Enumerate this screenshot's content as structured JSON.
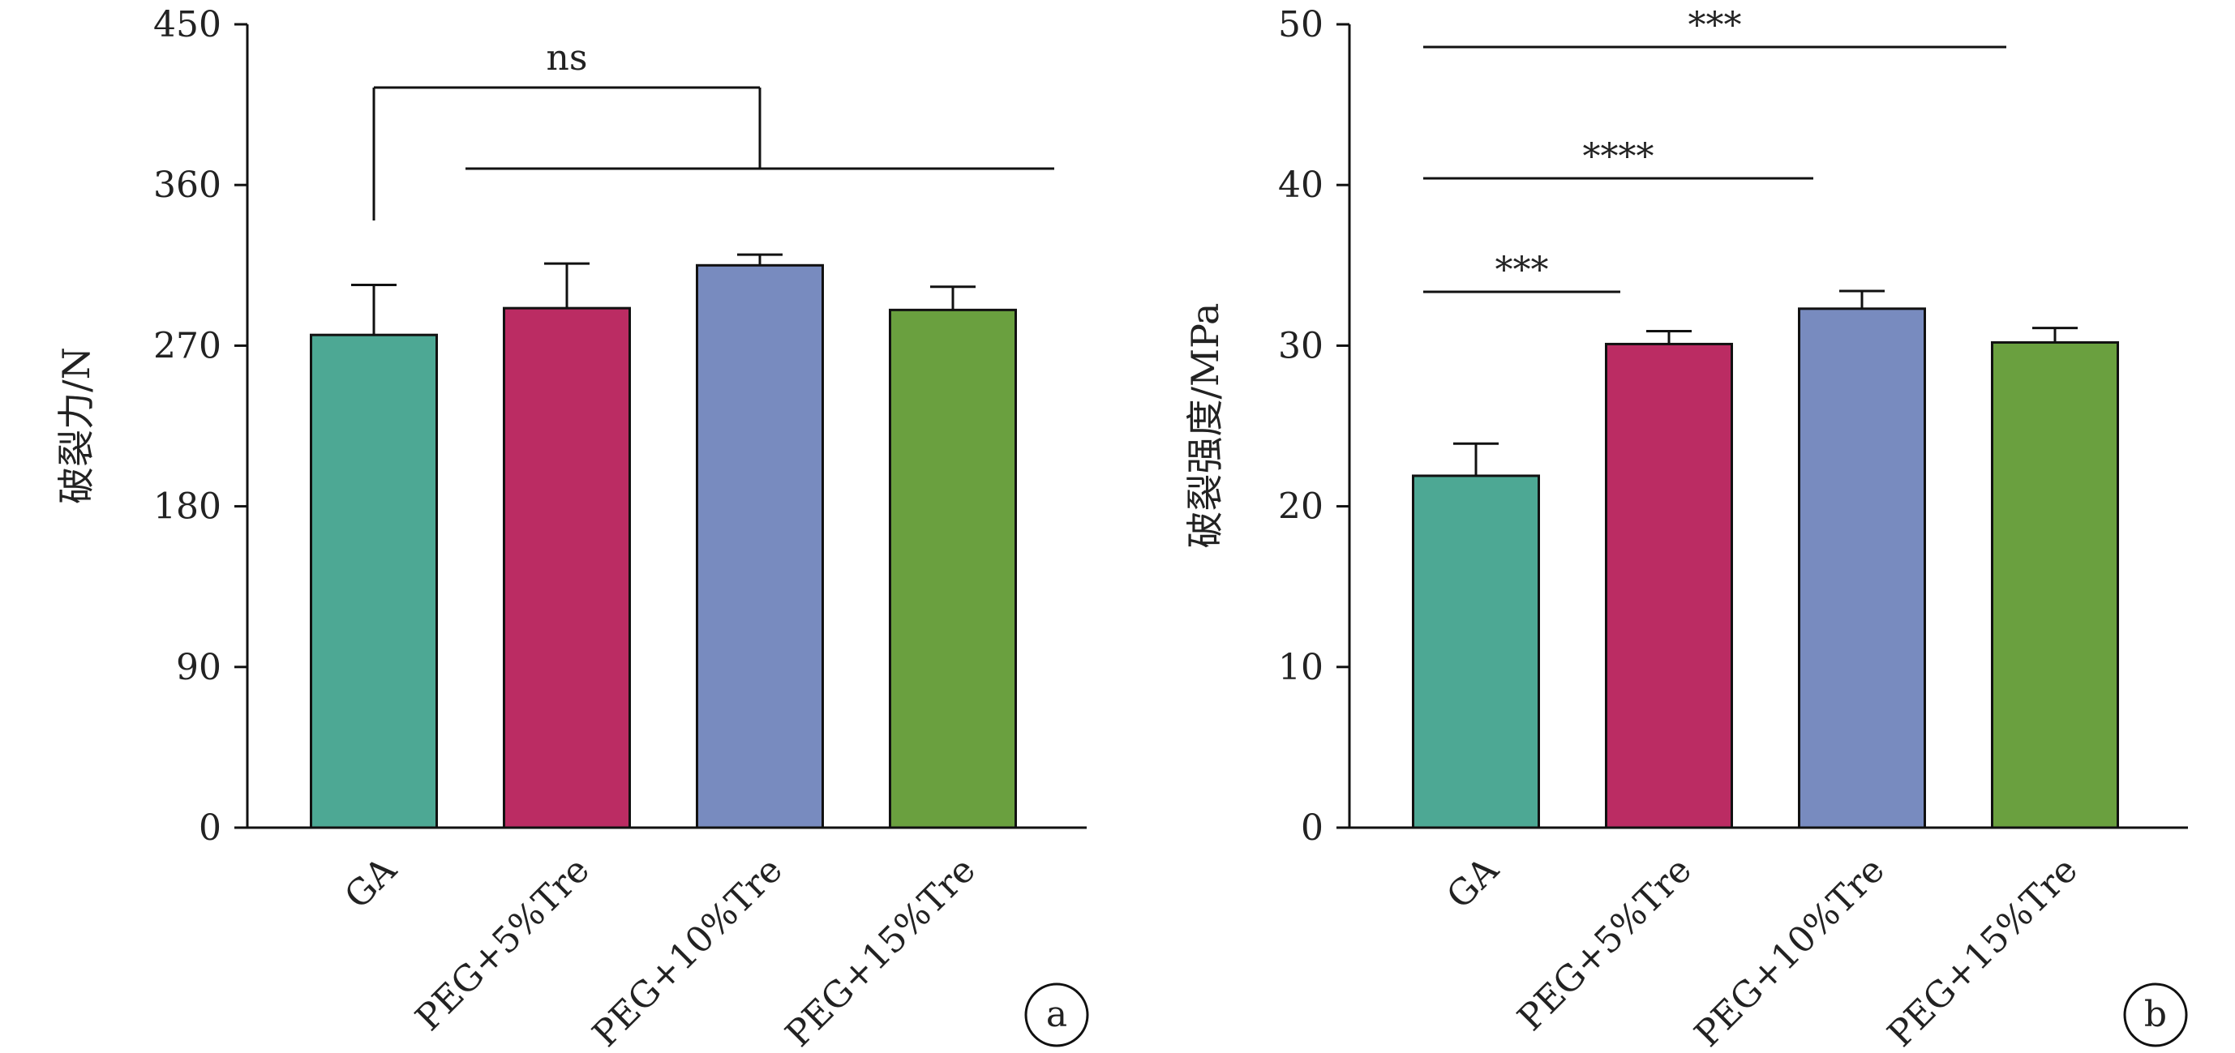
{
  "chart_data": [
    {
      "type": "bar",
      "panel_label": "a",
      "ylabel": "破裂力/N",
      "xlabel": "",
      "title": "",
      "ylim": [
        0,
        450
      ],
      "yticks": [
        0,
        90,
        180,
        270,
        360,
        450
      ],
      "categories": [
        "GA",
        "PEG+5%Tre",
        "PEG+10%Tre",
        "PEG+15%Tre"
      ],
      "values": [
        276,
        291,
        315,
        290
      ],
      "errors": [
        28,
        25,
        6,
        13
      ],
      "colors": [
        "#4da894",
        "#bb2c63",
        "#788bbf",
        "#6aa03f"
      ],
      "grid": false,
      "legend": "none",
      "significance": [
        {
          "label": "ns",
          "from": 0,
          "to_range": [
            1,
            3
          ]
        }
      ]
    },
    {
      "type": "bar",
      "panel_label": "b",
      "ylabel": "破裂强度/MPa",
      "xlabel": "",
      "title": "",
      "ylim": [
        0,
        50
      ],
      "yticks": [
        0,
        10,
        20,
        30,
        40,
        50
      ],
      "categories": [
        "GA",
        "PEG+5%Tre",
        "PEG+10%Tre",
        "PEG+15%Tre"
      ],
      "values": [
        21.9,
        30.1,
        32.3,
        30.2
      ],
      "errors": [
        2.0,
        0.8,
        1.1,
        0.9
      ],
      "colors": [
        "#4da894",
        "#bb2c63",
        "#788bbf",
        "#6aa03f"
      ],
      "grid": false,
      "legend": "none",
      "significance": [
        {
          "label": "***",
          "from": 0,
          "to": 1
        },
        {
          "label": "****",
          "from": 0,
          "to": 2
        },
        {
          "label": "***",
          "from": 0,
          "to": 3
        }
      ]
    }
  ]
}
